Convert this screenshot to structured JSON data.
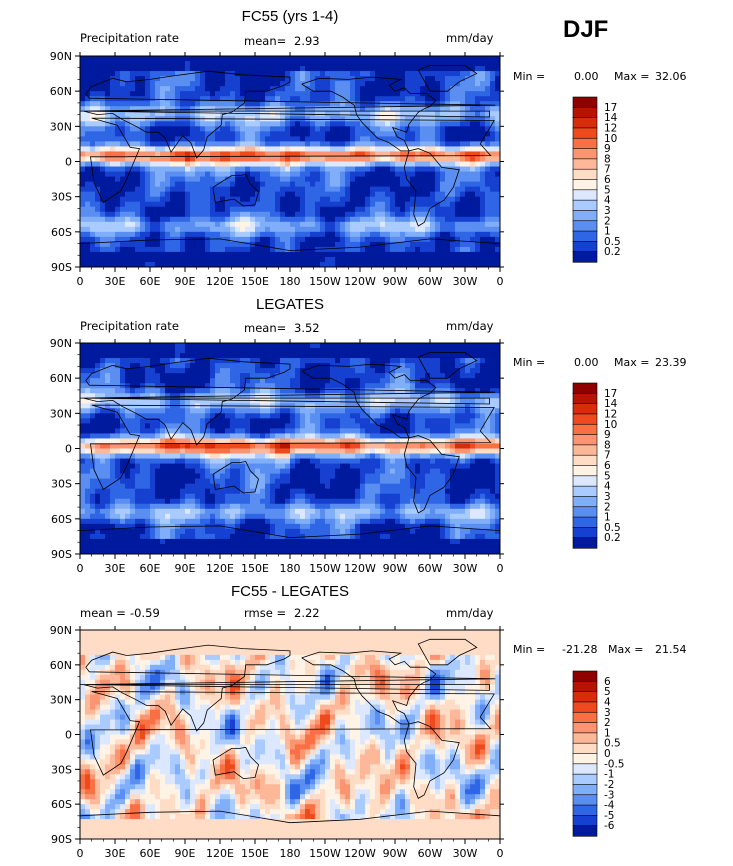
{
  "season": "DJF",
  "chart_data": [
    {
      "type": "heatmap",
      "title": "FC55 (yrs 1-4)",
      "subtitle_left": "Precipitation rate",
      "stat1_label": "mean=",
      "stat1_value": "2.93",
      "stat2_label": "",
      "stat2_value": "",
      "units": "mm/day",
      "min_label": "Min =",
      "min_value": "0.00",
      "max_label": "Max =",
      "max_value": "32.06",
      "x_ticks": [
        "0",
        "30E",
        "60E",
        "90E",
        "120E",
        "150E",
        "180",
        "150W",
        "120W",
        "90W",
        "60W",
        "30W",
        "0"
      ],
      "y_ticks": [
        "90N",
        "60N",
        "30N",
        "0",
        "30S",
        "60S",
        "90S"
      ],
      "colorbar_labels": [
        "17",
        "14",
        "12",
        "10",
        "9",
        "8",
        "7",
        "6",
        "5",
        "4",
        "3",
        "2",
        "1",
        "0.5",
        "0.2"
      ],
      "colorbar_colors": [
        "#8f0000",
        "#b81300",
        "#d72d0b",
        "#ee4a1d",
        "#f97045",
        "#fb9470",
        "#fdb89a",
        "#fedcc5",
        "#fff3e6",
        "#dbe8ff",
        "#aacbff",
        "#80aef9",
        "#5a8ef0",
        "#2f66e6",
        "#1640cf",
        "#001a9e"
      ]
    },
    {
      "type": "heatmap",
      "title": "LEGATES",
      "subtitle_left": "Precipitation rate",
      "stat1_label": "mean=",
      "stat1_value": "3.52",
      "stat2_label": "",
      "stat2_value": "",
      "units": "mm/day",
      "min_label": "Min =",
      "min_value": "0.00",
      "max_label": "Max =",
      "max_value": "23.39",
      "x_ticks": [
        "0",
        "30E",
        "60E",
        "90E",
        "120E",
        "150E",
        "180",
        "150W",
        "120W",
        "90W",
        "60W",
        "30W",
        "0"
      ],
      "y_ticks": [
        "90N",
        "60N",
        "30N",
        "0",
        "30S",
        "60S",
        "90S"
      ],
      "colorbar_labels": [
        "17",
        "14",
        "12",
        "10",
        "9",
        "8",
        "7",
        "6",
        "5",
        "4",
        "3",
        "2",
        "1",
        "0.5",
        "0.2"
      ],
      "colorbar_colors": [
        "#8f0000",
        "#b81300",
        "#d72d0b",
        "#ee4a1d",
        "#f97045",
        "#fb9470",
        "#fdb89a",
        "#fedcc5",
        "#fff3e6",
        "#dbe8ff",
        "#aacbff",
        "#80aef9",
        "#5a8ef0",
        "#2f66e6",
        "#1640cf",
        "#001a9e"
      ]
    },
    {
      "type": "heatmap",
      "title": "FC55 - LEGATES",
      "subtitle_left": "",
      "stat1_label": "mean =",
      "stat1_value": "-0.59",
      "stat2_label": "rmse =",
      "stat2_value": "2.22",
      "units": "mm/day",
      "min_label": "Min =",
      "min_value": "-21.28",
      "max_label": "Max =",
      "max_value": "21.54",
      "x_ticks": [
        "0",
        "30E",
        "60E",
        "90E",
        "120E",
        "150E",
        "180",
        "150W",
        "120W",
        "90W",
        "60W",
        "30W",
        "0"
      ],
      "y_ticks": [
        "90N",
        "60N",
        "30N",
        "0",
        "30S",
        "60S",
        "90S"
      ],
      "colorbar_labels": [
        "6",
        "5",
        "4",
        "3",
        "2",
        "1",
        "0.5",
        "0",
        "-0.5",
        "-1",
        "-2",
        "-3",
        "-4",
        "-5",
        "-6"
      ],
      "colorbar_colors": [
        "#8f0000",
        "#b81300",
        "#d72d0b",
        "#ee4a1d",
        "#f97045",
        "#fb9470",
        "#fdb89a",
        "#fedcc5",
        "#fff3e6",
        "#dbe8ff",
        "#aacbff",
        "#80aef9",
        "#5a8ef0",
        "#2f66e6",
        "#1640cf",
        "#001a9e"
      ]
    }
  ]
}
